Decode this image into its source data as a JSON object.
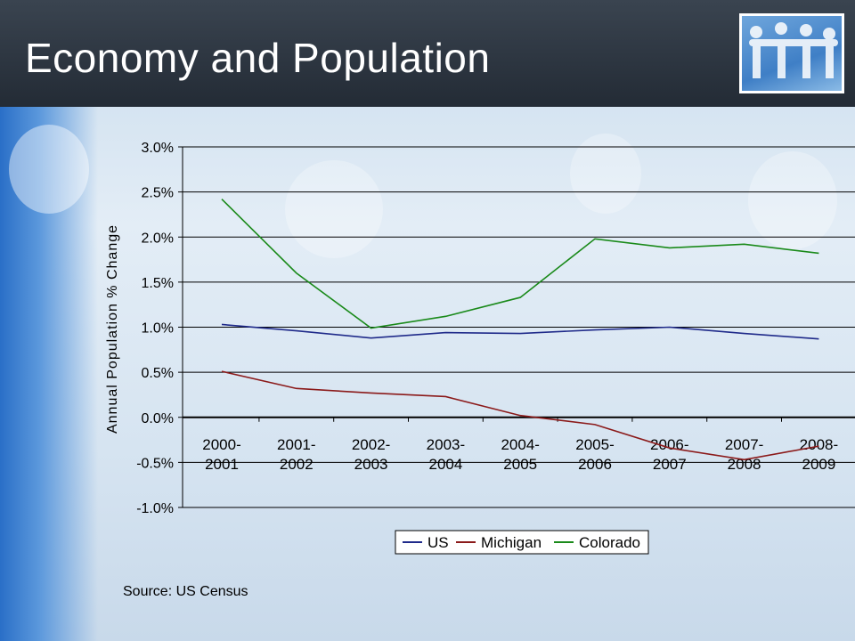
{
  "slide": {
    "title": "Economy and Population",
    "source": "Source: US Census"
  },
  "colors": {
    "header": "#2b333d",
    "US": "#1f2a8a",
    "Michigan": "#8b1a1a",
    "Colorado": "#1a8a1a"
  },
  "chart_data": {
    "type": "line",
    "categories": [
      [
        "2000-",
        "2001"
      ],
      [
        "2001-",
        "2002"
      ],
      [
        "2002-",
        "2003"
      ],
      [
        "2003-",
        "2004"
      ],
      [
        "2004-",
        "2005"
      ],
      [
        "2005-",
        "2006"
      ],
      [
        "2006-",
        "2007"
      ],
      [
        "2007-",
        "2008"
      ],
      [
        "2008-",
        "2009"
      ]
    ],
    "ylabel": "Annual Population % Change",
    "ylim": [
      -1.0,
      3.0
    ],
    "yticks": [
      3.0,
      2.5,
      2.0,
      1.5,
      1.0,
      0.5,
      0.0,
      -0.5,
      -1.0
    ],
    "ytick_labels": [
      "3.0%",
      "2.5%",
      "2.0%",
      "1.5%",
      "1.0%",
      "0.5%",
      "0.0%",
      "-0.5%",
      "-1.0%"
    ],
    "grid": true,
    "legend": "bottom",
    "series": [
      {
        "name": "US",
        "values": [
          1.03,
          0.96,
          0.88,
          0.94,
          0.93,
          0.97,
          1.0,
          0.93,
          0.87
        ]
      },
      {
        "name": "Michigan",
        "values": [
          0.51,
          0.32,
          0.27,
          0.23,
          0.02,
          -0.08,
          -0.34,
          -0.47,
          -0.32
        ]
      },
      {
        "name": "Colorado",
        "values": [
          2.42,
          1.6,
          0.99,
          1.12,
          1.33,
          1.98,
          1.88,
          1.92,
          1.82
        ]
      }
    ]
  }
}
